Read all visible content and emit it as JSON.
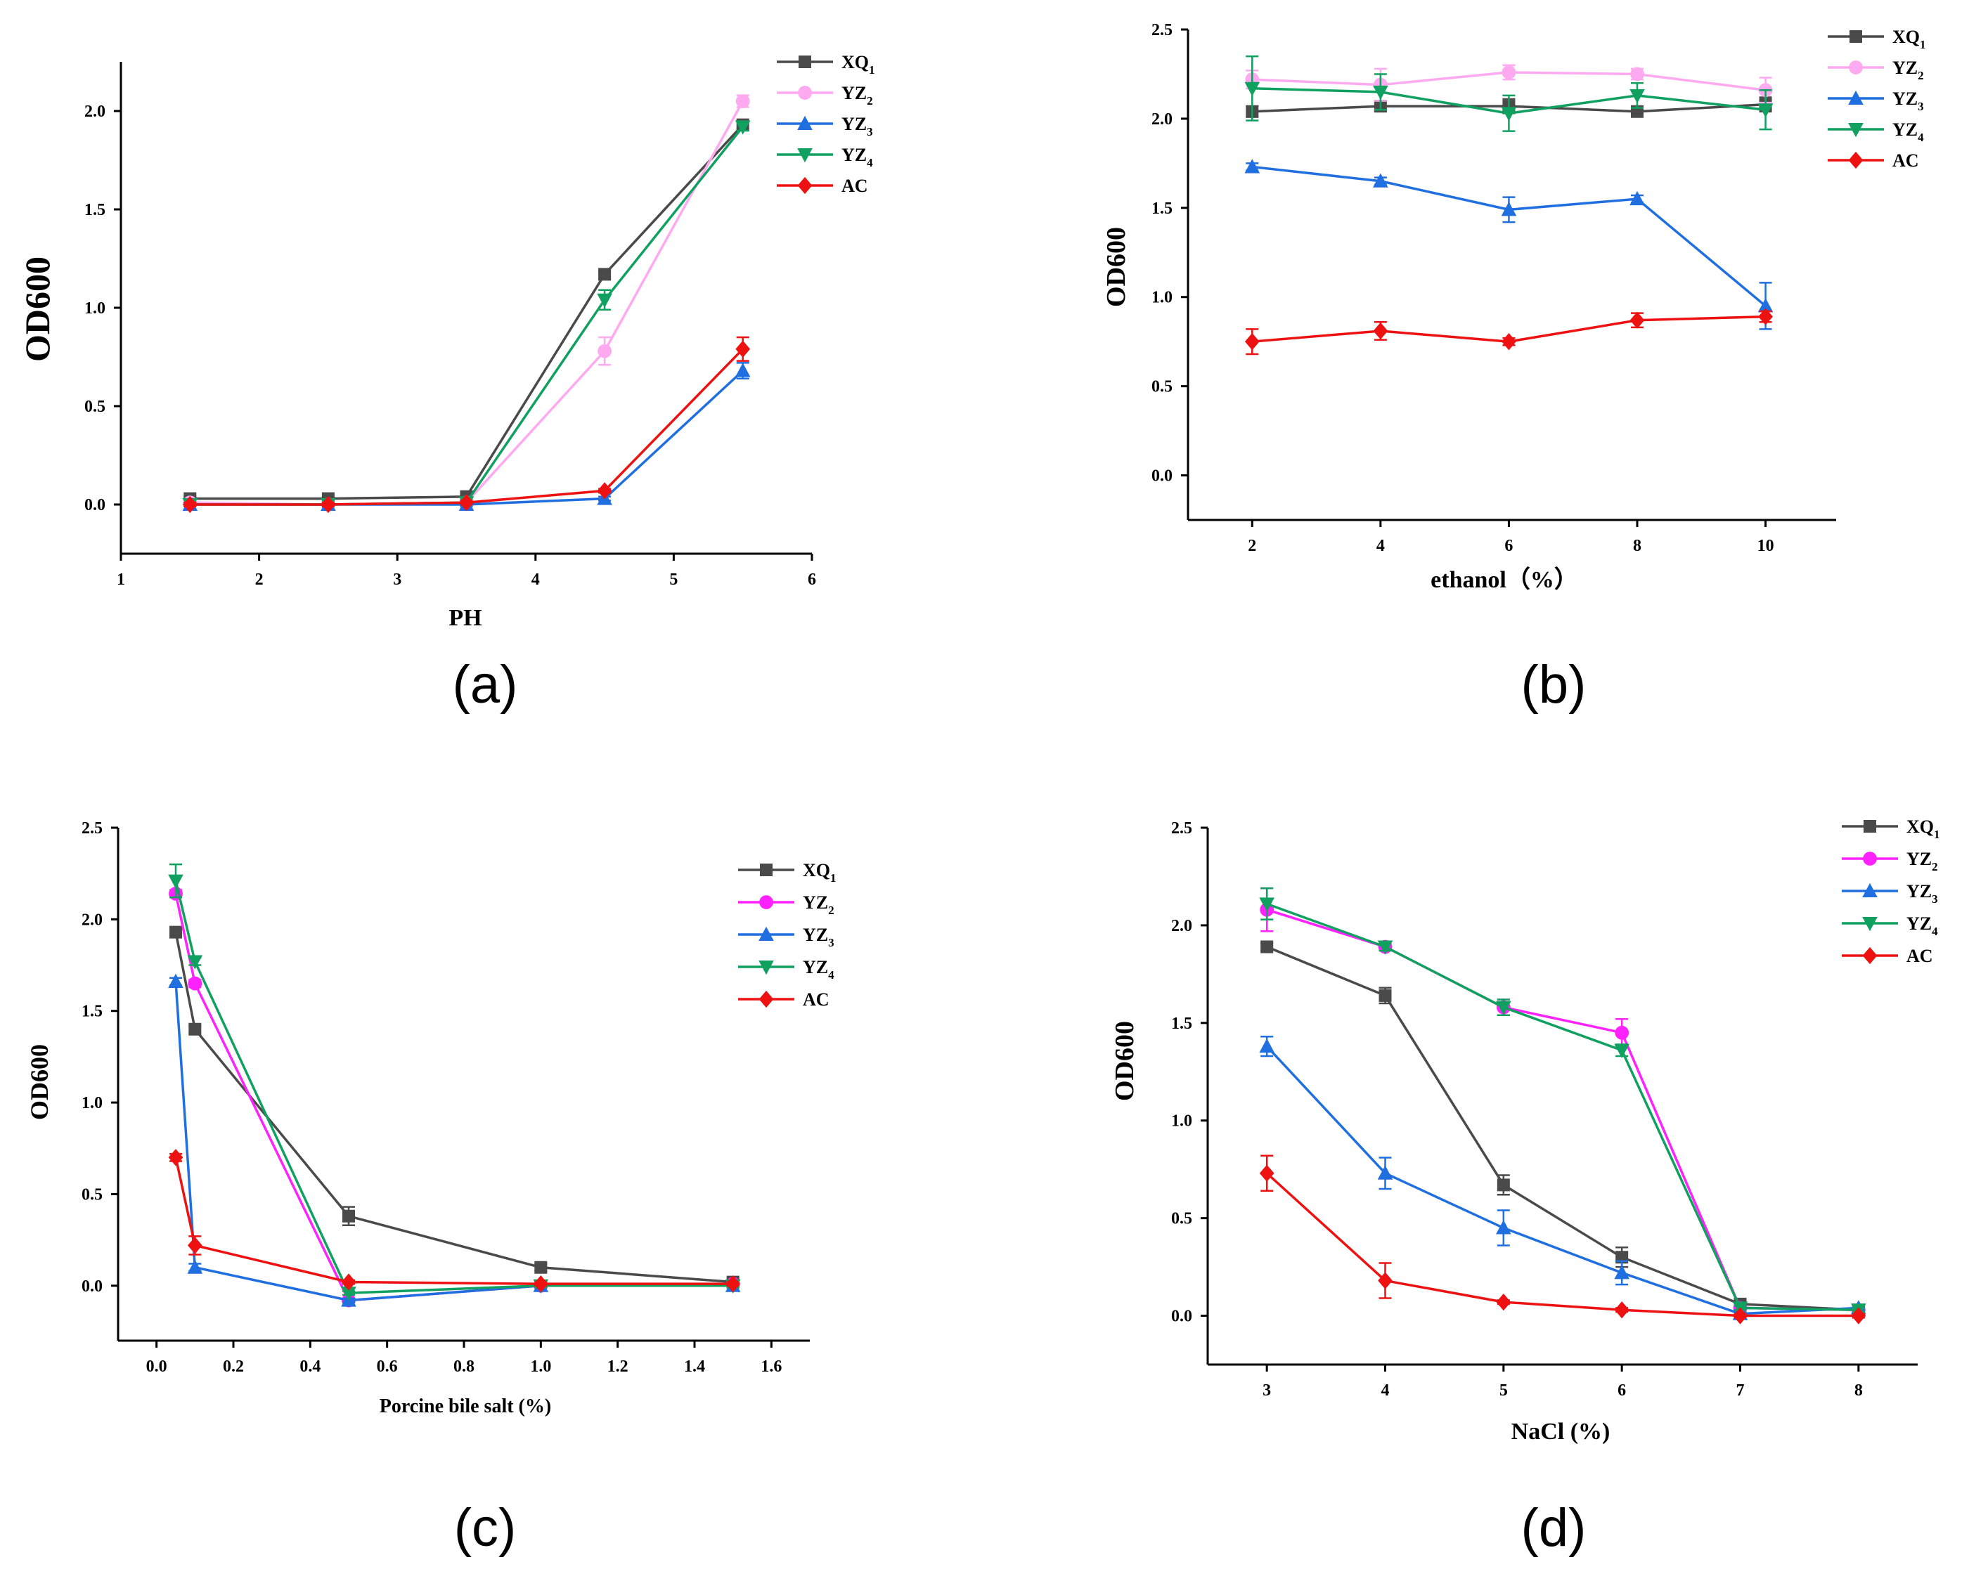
{
  "chart_data": [
    {
      "panel": "(a)",
      "type": "line",
      "xlabel": "PH",
      "ylabel": "OD600",
      "xlim": [
        1,
        6
      ],
      "ylim": [
        -0.25,
        2.25
      ],
      "xticks": [
        "1",
        "2",
        "3",
        "4",
        "5",
        "6"
      ],
      "yticks": [
        "0.0",
        "0.5",
        "1.0",
        "1.5",
        "2.0"
      ],
      "x": [
        1.5,
        2.5,
        3.5,
        4.5,
        5.5
      ],
      "legend_position": "top-right",
      "series": [
        {
          "name": "XQ",
          "sub": "1",
          "color": "#4a4a4a",
          "marker": "square",
          "values": [
            0.03,
            0.03,
            0.04,
            1.17,
            1.93
          ],
          "errors": [
            0.01,
            0.01,
            0.01,
            0.02,
            0.02
          ]
        },
        {
          "name": "YZ",
          "sub": "2",
          "color": "#ffaaf0",
          "marker": "circle",
          "values": [
            0.01,
            0.0,
            0.01,
            0.78,
            2.05
          ],
          "errors": [
            0.01,
            0.01,
            0.01,
            0.07,
            0.03
          ]
        },
        {
          "name": "YZ",
          "sub": "3",
          "color": "#1f6fe0",
          "marker": "triangle-up",
          "values": [
            0.0,
            0.0,
            0.0,
            0.03,
            0.68
          ],
          "errors": [
            0.01,
            0.01,
            0.01,
            0.01,
            0.04
          ]
        },
        {
          "name": "YZ",
          "sub": "4",
          "color": "#10a060",
          "marker": "triangle-down",
          "values": [
            0.0,
            0.0,
            0.01,
            1.04,
            1.92
          ],
          "errors": [
            0.01,
            0.01,
            0.01,
            0.05,
            0.02
          ]
        },
        {
          "name": "AC",
          "sub": "",
          "color": "#ee1111",
          "marker": "diamond",
          "values": [
            0.0,
            0.0,
            0.01,
            0.07,
            0.79
          ],
          "errors": [
            0.01,
            0.01,
            0.01,
            0.01,
            0.06
          ]
        }
      ]
    },
    {
      "panel": "(b)",
      "type": "line",
      "xlabel": "ethanol（%）",
      "ylabel": "OD600",
      "xlim": [
        1,
        11.1
      ],
      "ylim": [
        -0.25,
        2.5
      ],
      "xticks": [
        "2",
        "4",
        "6",
        "8",
        "10"
      ],
      "yticks": [
        "0.0",
        "0.5",
        "1.0",
        "1.5",
        "2.0",
        "2.5"
      ],
      "x": [
        2,
        4,
        6,
        8,
        10
      ],
      "legend_position": "top-right",
      "series": [
        {
          "name": "XQ",
          "sub": "1",
          "color": "#4a4a4a",
          "marker": "square",
          "values": [
            2.04,
            2.07,
            2.07,
            2.04,
            2.08
          ],
          "errors": [
            0.03,
            0.03,
            0.04,
            0.02,
            0.04
          ]
        },
        {
          "name": "YZ",
          "sub": "2",
          "color": "#ffaaf0",
          "marker": "circle",
          "values": [
            2.22,
            2.19,
            2.26,
            2.25,
            2.16
          ],
          "errors": [
            0.05,
            0.09,
            0.04,
            0.03,
            0.07
          ]
        },
        {
          "name": "YZ",
          "sub": "3",
          "color": "#1f6fe0",
          "marker": "triangle-up",
          "values": [
            1.73,
            1.65,
            1.49,
            1.55,
            0.95
          ],
          "errors": [
            0.02,
            0.02,
            0.07,
            0.02,
            0.13
          ]
        },
        {
          "name": "YZ",
          "sub": "4",
          "color": "#10a060",
          "marker": "triangle-down",
          "values": [
            2.17,
            2.15,
            2.03,
            2.13,
            2.05
          ],
          "errors": [
            0.18,
            0.1,
            0.1,
            0.07,
            0.11
          ]
        },
        {
          "name": "AC",
          "sub": "",
          "color": "#ee1111",
          "marker": "diamond",
          "values": [
            0.75,
            0.81,
            0.75,
            0.87,
            0.89
          ],
          "errors": [
            0.07,
            0.05,
            0.02,
            0.04,
            0.03
          ]
        }
      ]
    },
    {
      "panel": "(c)",
      "type": "line",
      "xlabel": "Porcine bile salt (%)",
      "ylabel": "OD600",
      "xlim": [
        -0.1,
        1.7
      ],
      "ylim": [
        -0.3,
        2.5
      ],
      "xticks": [
        "0.0",
        "0.2",
        "0.4",
        "0.6",
        "0.8",
        "1.0",
        "1.2",
        "1.4",
        "1.6"
      ],
      "yticks": [
        "0.0",
        "0.5",
        "1.0",
        "1.5",
        "2.0",
        "2.5"
      ],
      "x": [
        0.05,
        0.1,
        0.5,
        1.0,
        1.5
      ],
      "legend_position": "top-right",
      "series": [
        {
          "name": "XQ",
          "sub": "1",
          "color": "#4a4a4a",
          "marker": "square",
          "values": [
            1.93,
            1.4,
            0.38,
            0.1,
            0.02
          ],
          "errors": [
            0.02,
            0.02,
            0.05,
            0.02,
            0.01
          ]
        },
        {
          "name": "YZ",
          "sub": "2",
          "color": "#ff22ff",
          "marker": "circle",
          "values": [
            2.14,
            1.65,
            -0.08,
            0.0,
            0.01
          ],
          "errors": [
            0.02,
            0.02,
            0.01,
            0.01,
            0.01
          ]
        },
        {
          "name": "YZ",
          "sub": "3",
          "color": "#1f6fe0",
          "marker": "triangle-up",
          "values": [
            1.66,
            0.1,
            -0.08,
            0.0,
            0.0
          ],
          "errors": [
            0.02,
            0.02,
            0.01,
            0.01,
            0.01
          ]
        },
        {
          "name": "YZ",
          "sub": "4",
          "color": "#10a060",
          "marker": "triangle-down",
          "values": [
            2.21,
            1.77,
            -0.04,
            0.0,
            0.0
          ],
          "errors": [
            0.09,
            0.02,
            0.01,
            0.01,
            0.01
          ]
        },
        {
          "name": "AC",
          "sub": "",
          "color": "#ee1111",
          "marker": "diamond",
          "values": [
            0.7,
            0.22,
            0.02,
            0.01,
            0.01
          ],
          "errors": [
            0.02,
            0.05,
            0.01,
            0.01,
            0.01
          ]
        }
      ]
    },
    {
      "panel": "(d)",
      "type": "line",
      "xlabel": "NaCl (%)",
      "ylabel": "OD600",
      "xlim": [
        2.5,
        8.5
      ],
      "ylim": [
        -0.25,
        2.5
      ],
      "xticks": [
        "3",
        "4",
        "5",
        "6",
        "7",
        "8"
      ],
      "yticks": [
        "0.0",
        "0.5",
        "1.0",
        "1.5",
        "2.0",
        "2.5"
      ],
      "x": [
        3,
        4,
        5,
        6,
        7,
        8
      ],
      "legend_position": "top-right",
      "series": [
        {
          "name": "XQ",
          "sub": "1",
          "color": "#4a4a4a",
          "marker": "square",
          "values": [
            1.89,
            1.64,
            0.67,
            0.3,
            0.06,
            0.03
          ],
          "errors": [
            0.02,
            0.04,
            0.05,
            0.05,
            0.01,
            0.01
          ]
        },
        {
          "name": "YZ",
          "sub": "2",
          "color": "#ff22ff",
          "marker": "circle",
          "values": [
            2.08,
            1.89,
            1.58,
            1.45,
            0.04,
            0.03
          ],
          "errors": [
            0.11,
            0.02,
            0.04,
            0.07,
            0.01,
            0.01
          ]
        },
        {
          "name": "YZ",
          "sub": "3",
          "color": "#1f6fe0",
          "marker": "triangle-up",
          "values": [
            1.38,
            0.73,
            0.45,
            0.22,
            0.01,
            0.04
          ],
          "errors": [
            0.05,
            0.08,
            0.09,
            0.06,
            0.01,
            0.01
          ]
        },
        {
          "name": "YZ",
          "sub": "4",
          "color": "#10a060",
          "marker": "triangle-down",
          "values": [
            2.11,
            1.89,
            1.58,
            1.36,
            0.04,
            0.03
          ],
          "errors": [
            0.08,
            0.02,
            0.04,
            0.03,
            0.01,
            0.01
          ]
        },
        {
          "name": "AC",
          "sub": "",
          "color": "#ee1111",
          "marker": "diamond",
          "values": [
            0.73,
            0.18,
            0.07,
            0.03,
            0.0,
            0.0
          ],
          "errors": [
            0.09,
            0.09,
            0.01,
            0.01,
            0.01,
            0.01
          ]
        }
      ]
    }
  ]
}
